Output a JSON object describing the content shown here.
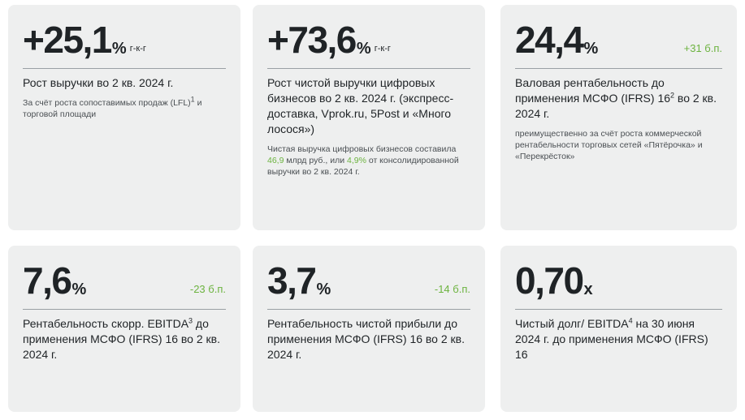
{
  "cards": [
    {
      "value": "+25,1",
      "unit": "%",
      "suffix": "г-к-г",
      "desc": "Рост выручки во 2 кв. 2024 г.",
      "note_a": "За счёт роста сопоставимых продаж (LFL)",
      "note_sup": "1",
      "note_b": " и торговой площади"
    },
    {
      "value": "+73,6",
      "unit": "%",
      "suffix": "г-к-г",
      "desc": "Рост чистой выручки цифровых бизнесов во 2 кв. 2024 г. (экспресс-доставка, Vprok.ru, 5Post и «Много лосося»)",
      "note_a": "Чистая выручка цифровых бизнесов составила ",
      "note_hl1": "46,9",
      "note_b": " млрд руб., или ",
      "note_hl2": "4,9%",
      "note_c": " от консолидированной выручки во 2 кв. 2024 г."
    },
    {
      "value": "24,4",
      "unit": "%",
      "delta": "+31 б.п.",
      "desc_a": "Валовая рентабельность до применения МСФО (IFRS) 16",
      "desc_sup": "2",
      "desc_b": " во 2 кв. 2024 г.",
      "note": "преимущественно за счёт роста коммерческой рентабельности торговых сетей «Пятёрочка» и «Перекрёсток»"
    },
    {
      "value": "7,6",
      "unit": "%",
      "delta": "-23 б.п.",
      "desc_a": "Рентабельность скорр. EBITDA",
      "desc_sup": "3",
      "desc_b": " до применения МСФО (IFRS) 16 во 2 кв. 2024 г."
    },
    {
      "value": "3,7",
      "unit": "%",
      "delta": "-14 б.п.",
      "desc": "Рентабельность чистой прибыли до применения МСФО (IFRS) 16 во 2 кв. 2024 г."
    },
    {
      "value": "0,70",
      "unit": "x",
      "desc_a": "Чистый долг/ EBITDA",
      "desc_sup": "4",
      "desc_b": " на 30 июня 2024 г. до применения МСФО (IFRS) 16"
    }
  ],
  "colors": {
    "card_bg": "#eeefef",
    "accent_green": "#6cb33f",
    "text": "#1f2326"
  }
}
